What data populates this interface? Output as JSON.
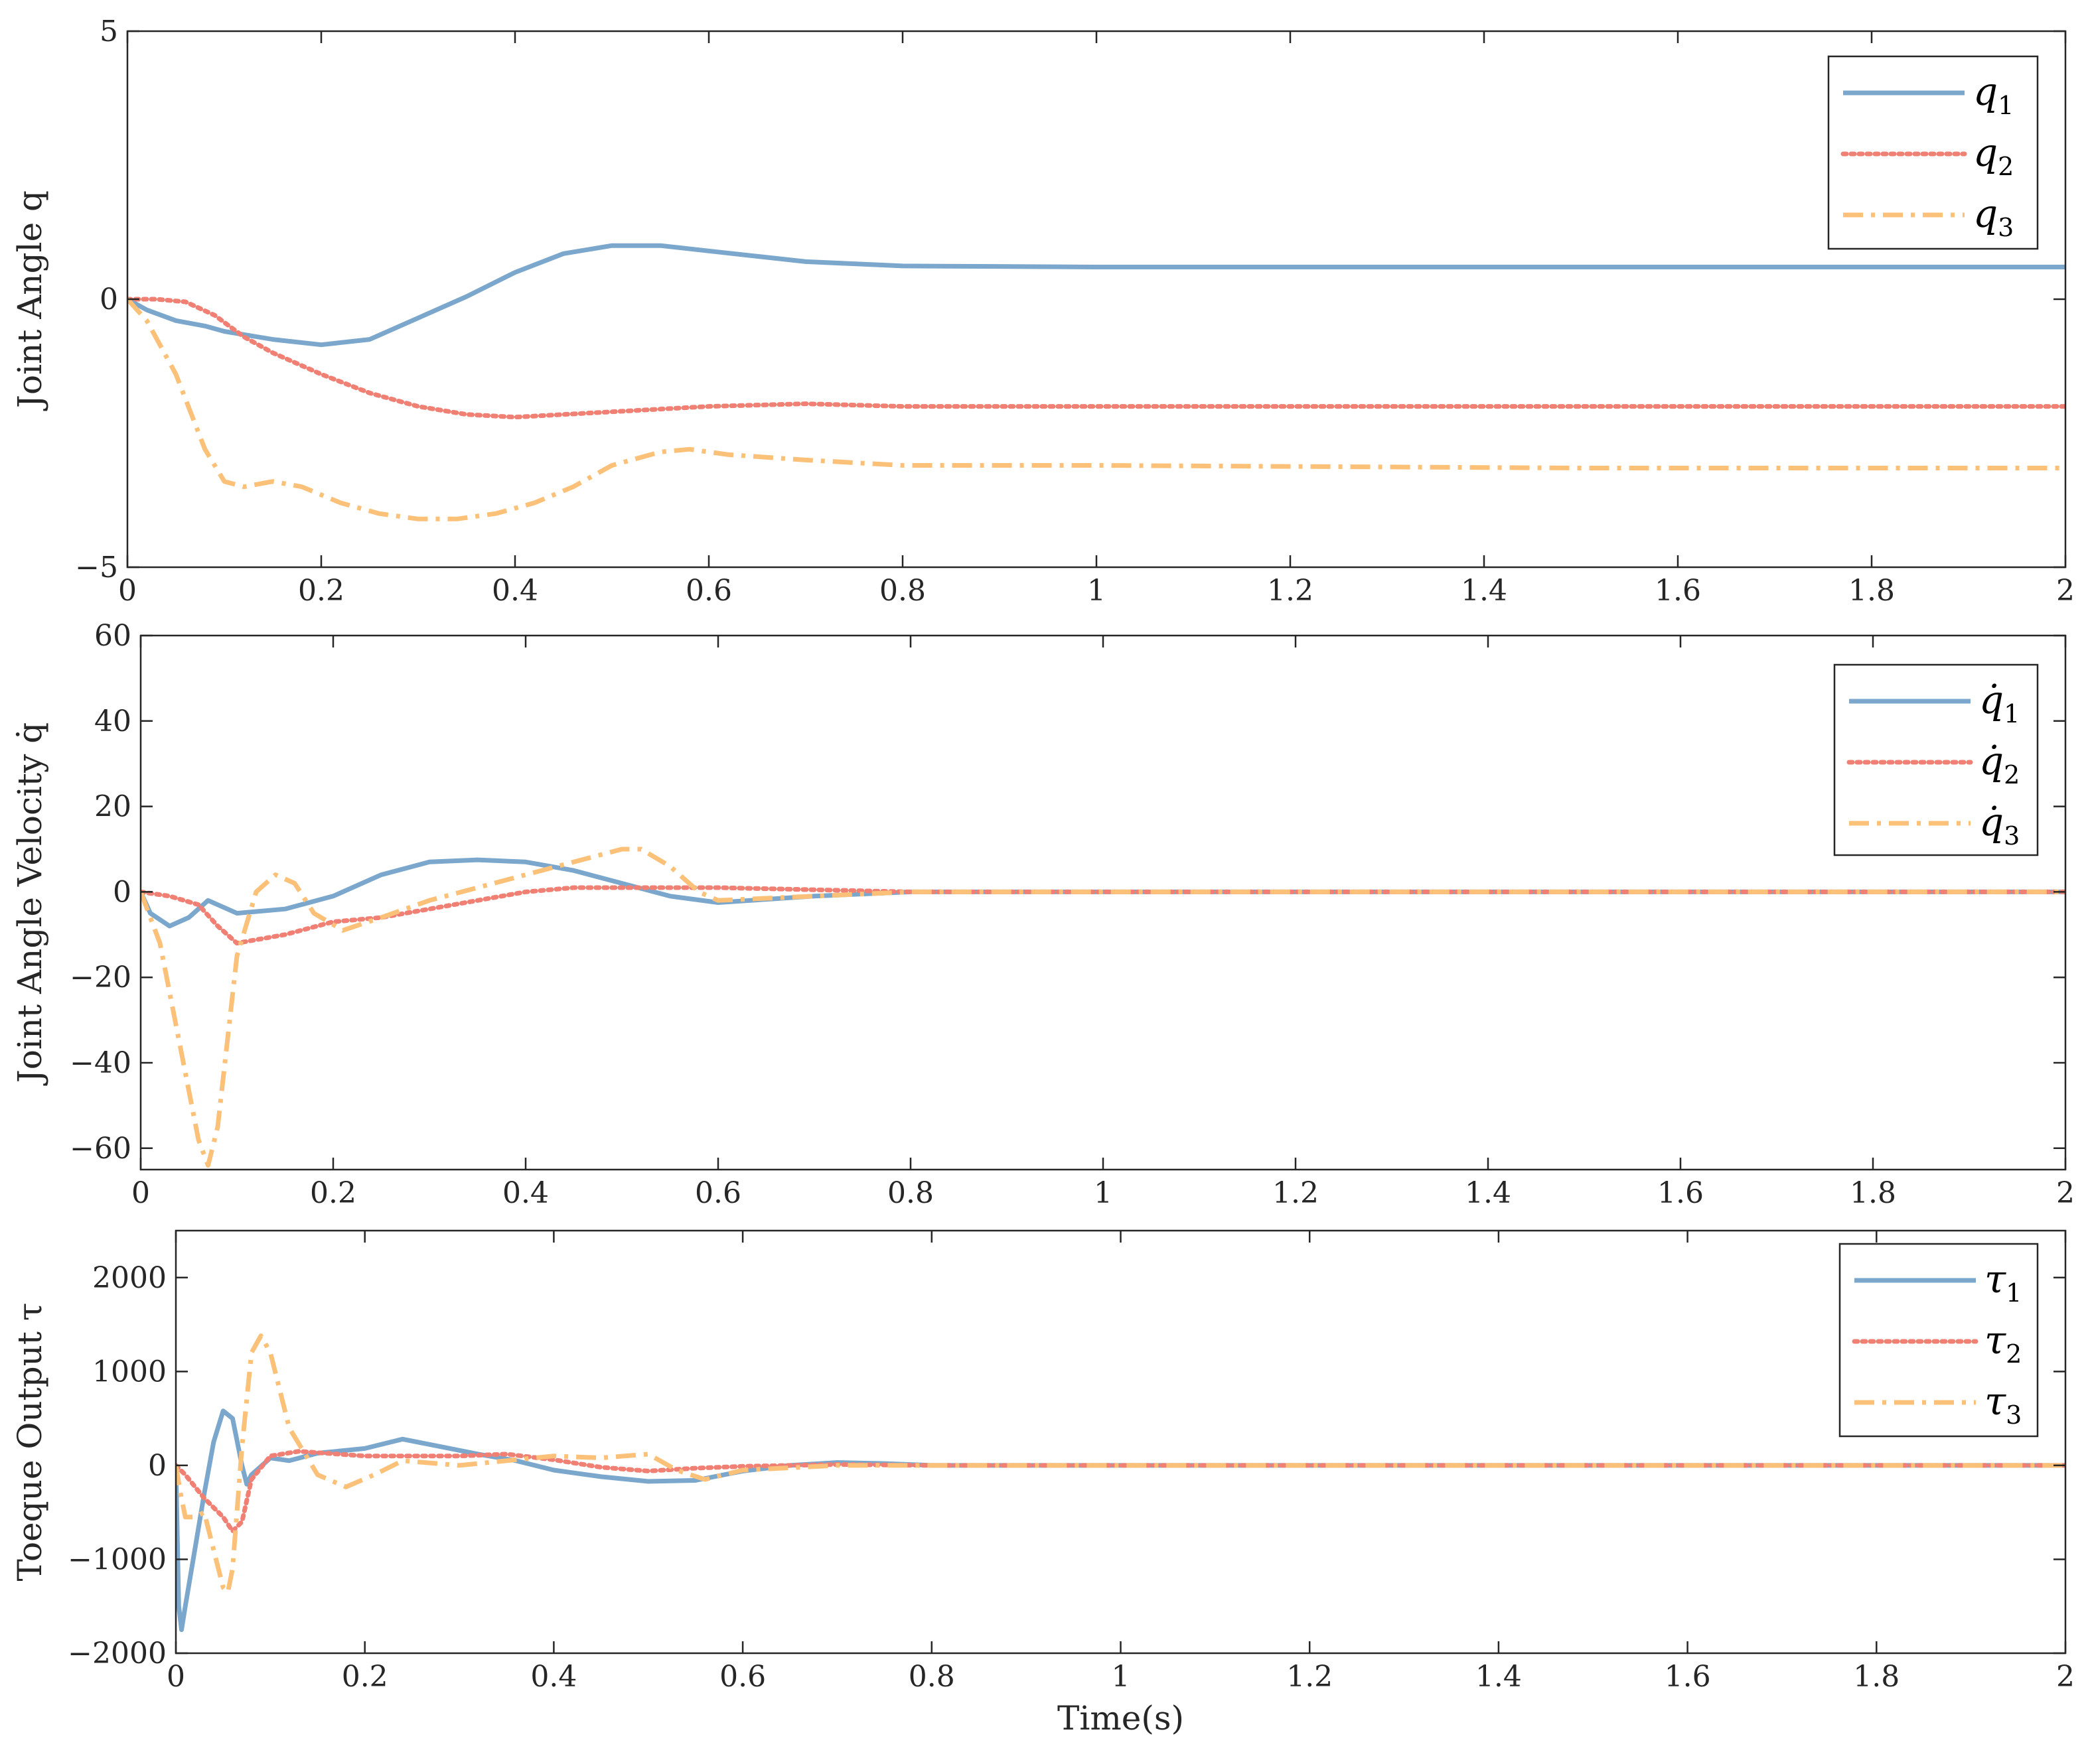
{
  "chart_data": [
    {
      "type": "line",
      "ylabel": "Joint Angle q",
      "xlabel": "",
      "xlim": [
        0,
        2
      ],
      "ylim": [
        -5,
        5
      ],
      "xticks": [
        "0",
        "0.2",
        "0.4",
        "0.6",
        "0.8",
        "1",
        "1.2",
        "1.4",
        "1.6",
        "1.8",
        "2"
      ],
      "yticks": [
        "−5",
        "0",
        "5"
      ],
      "ytick_values": [
        -5,
        0,
        5
      ],
      "grid": false,
      "legend": "top-right",
      "series": [
        {
          "name": "q1",
          "symbol": "q",
          "subscript": "1",
          "color": "#7BA7CC",
          "style": "solid",
          "x": [
            0,
            0.02,
            0.05,
            0.08,
            0.1,
            0.15,
            0.2,
            0.25,
            0.3,
            0.35,
            0.4,
            0.45,
            0.5,
            0.55,
            0.6,
            0.7,
            0.8,
            1,
            1.5,
            2
          ],
          "y": [
            0,
            -0.2,
            -0.4,
            -0.5,
            -0.6,
            -0.75,
            -0.85,
            -0.75,
            -0.35,
            0.05,
            0.5,
            0.85,
            1.0,
            1.0,
            0.9,
            0.7,
            0.62,
            0.6,
            0.6,
            0.6
          ]
        },
        {
          "name": "q2",
          "symbol": "q",
          "subscript": "2",
          "color": "#F08074",
          "style": "dotted",
          "x": [
            0,
            0.03,
            0.06,
            0.09,
            0.12,
            0.15,
            0.2,
            0.25,
            0.3,
            0.35,
            0.4,
            0.5,
            0.6,
            0.7,
            0.8,
            1,
            1.5,
            2
          ],
          "y": [
            0,
            0,
            -0.05,
            -0.3,
            -0.7,
            -1.0,
            -1.4,
            -1.75,
            -2.0,
            -2.15,
            -2.2,
            -2.1,
            -2.0,
            -1.95,
            -2.0,
            -2.0,
            -2.0,
            -2.0
          ]
        },
        {
          "name": "q3",
          "symbol": "q",
          "subscript": "3",
          "color": "#FBC178",
          "style": "dashdot",
          "x": [
            0,
            0.02,
            0.05,
            0.08,
            0.1,
            0.12,
            0.15,
            0.18,
            0.22,
            0.26,
            0.3,
            0.34,
            0.38,
            0.42,
            0.46,
            0.5,
            0.55,
            0.58,
            0.62,
            0.7,
            0.8,
            1,
            1.5,
            2
          ],
          "y": [
            0,
            -0.4,
            -1.4,
            -2.8,
            -3.4,
            -3.5,
            -3.4,
            -3.5,
            -3.8,
            -4.0,
            -4.1,
            -4.1,
            -4.0,
            -3.8,
            -3.5,
            -3.1,
            -2.85,
            -2.8,
            -2.9,
            -3.0,
            -3.1,
            -3.1,
            -3.15,
            -3.15
          ]
        }
      ]
    },
    {
      "type": "line",
      "ylabel": "Joint Angle Velocity q̇",
      "xlabel": "",
      "xlim": [
        0,
        2
      ],
      "ylim": [
        -65,
        60
      ],
      "xticks": [
        "0",
        "0.2",
        "0.4",
        "0.6",
        "0.8",
        "1",
        "1.2",
        "1.4",
        "1.6",
        "1.8",
        "2"
      ],
      "yticks": [
        "−60",
        "−40",
        "−20",
        "0",
        "20",
        "40",
        "60"
      ],
      "ytick_values": [
        -60,
        -40,
        -20,
        0,
        20,
        40,
        60
      ],
      "grid": false,
      "legend": "top-right",
      "series": [
        {
          "name": "q̇1",
          "symbol": "q̇",
          "subscript": "1",
          "color": "#7BA7CC",
          "style": "solid",
          "x": [
            0,
            0.01,
            0.03,
            0.05,
            0.07,
            0.1,
            0.15,
            0.2,
            0.25,
            0.3,
            0.35,
            0.4,
            0.45,
            0.5,
            0.55,
            0.6,
            0.7,
            0.8,
            1,
            1.5,
            2
          ],
          "y": [
            0,
            -5,
            -8,
            -6,
            -2,
            -5,
            -4,
            -1,
            4,
            7,
            7.5,
            7,
            5,
            2,
            -1,
            -2.5,
            -1,
            0,
            0,
            0,
            0
          ]
        },
        {
          "name": "q̇2",
          "symbol": "q̇",
          "subscript": "2",
          "color": "#F08074",
          "style": "dotted",
          "x": [
            0,
            0.03,
            0.06,
            0.08,
            0.1,
            0.15,
            0.2,
            0.25,
            0.3,
            0.35,
            0.4,
            0.45,
            0.5,
            0.55,
            0.6,
            0.7,
            0.8,
            1,
            1.5,
            2
          ],
          "y": [
            0,
            -1,
            -3,
            -8,
            -12,
            -10,
            -7,
            -6,
            -4,
            -2,
            0,
            1,
            1,
            1,
            1,
            0.5,
            0,
            0,
            0,
            0
          ]
        },
        {
          "name": "q̇3",
          "symbol": "q̇",
          "subscript": "3",
          "color": "#FBC178",
          "style": "dashdot",
          "x": [
            0,
            0.02,
            0.04,
            0.06,
            0.07,
            0.08,
            0.09,
            0.1,
            0.12,
            0.14,
            0.16,
            0.18,
            0.21,
            0.25,
            0.3,
            0.35,
            0.4,
            0.45,
            0.5,
            0.52,
            0.55,
            0.58,
            0.6,
            0.7,
            0.8,
            1,
            1.5,
            2
          ],
          "y": [
            0,
            -12,
            -35,
            -58,
            -64,
            -55,
            -35,
            -15,
            0,
            4,
            2,
            -5,
            -9,
            -6,
            -2,
            1,
            4,
            7,
            10,
            10,
            6,
            0,
            -2,
            -1,
            0,
            0,
            0,
            0
          ]
        }
      ]
    },
    {
      "type": "line",
      "ylabel": "Toeque Output τ",
      "xlabel": "Time(s)",
      "xlim": [
        0,
        2
      ],
      "ylim": [
        -2000,
        2500
      ],
      "xticks": [
        "0",
        "0.2",
        "0.4",
        "0.6",
        "0.8",
        "1",
        "1.2",
        "1.4",
        "1.6",
        "1.8",
        "2"
      ],
      "yticks": [
        "−2000",
        "−1000",
        "0",
        "1000",
        "2000"
      ],
      "ytick_values": [
        -2000,
        -1000,
        0,
        1000,
        2000
      ],
      "grid": false,
      "legend": "top-right",
      "series": [
        {
          "name": "τ1",
          "symbol": "τ",
          "subscript": "1",
          "color": "#7BA7CC",
          "style": "solid",
          "x": [
            0,
            0.003,
            0.006,
            0.01,
            0.02,
            0.03,
            0.04,
            0.05,
            0.06,
            0.07,
            0.075,
            0.08,
            0.1,
            0.12,
            0.15,
            0.2,
            0.24,
            0.28,
            0.32,
            0.36,
            0.4,
            0.45,
            0.5,
            0.55,
            0.6,
            0.65,
            0.7,
            0.75,
            0.8,
            1,
            1.5,
            2
          ],
          "y": [
            0,
            -1500,
            -1750,
            -1500,
            -900,
            -300,
            250,
            580,
            500,
            0,
            -200,
            -100,
            80,
            50,
            130,
            180,
            280,
            200,
            120,
            50,
            -50,
            -120,
            -170,
            -160,
            -60,
            0,
            30,
            20,
            0,
            0,
            0,
            0
          ]
        },
        {
          "name": "τ2",
          "symbol": "τ",
          "subscript": "2",
          "color": "#F08074",
          "style": "dotted",
          "x": [
            0,
            0.01,
            0.03,
            0.05,
            0.06,
            0.07,
            0.08,
            0.1,
            0.13,
            0.2,
            0.3,
            0.35,
            0.4,
            0.45,
            0.5,
            0.55,
            0.6,
            0.7,
            0.8,
            1,
            1.5,
            2
          ],
          "y": [
            0,
            -100,
            -350,
            -550,
            -700,
            -600,
            -150,
            100,
            150,
            100,
            100,
            120,
            60,
            -20,
            -60,
            -30,
            -10,
            10,
            0,
            0,
            0,
            0
          ]
        },
        {
          "name": "τ3",
          "symbol": "τ",
          "subscript": "3",
          "color": "#FBC178",
          "style": "dashdot",
          "x": [
            0,
            0.005,
            0.01,
            0.02,
            0.03,
            0.04,
            0.05,
            0.055,
            0.06,
            0.07,
            0.08,
            0.09,
            0.1,
            0.12,
            0.15,
            0.18,
            0.21,
            0.24,
            0.3,
            0.35,
            0.4,
            0.45,
            0.5,
            0.53,
            0.56,
            0.6,
            0.7,
            0.8,
            1,
            1.5,
            2
          ],
          "y": [
            0,
            -300,
            -550,
            -550,
            -500,
            -900,
            -1300,
            -1350,
            -1100,
            200,
            1200,
            1380,
            1200,
            400,
            -100,
            -230,
            -100,
            50,
            0,
            50,
            100,
            80,
            120,
            -50,
            -150,
            -50,
            0,
            0,
            0,
            0,
            0
          ]
        }
      ]
    }
  ]
}
